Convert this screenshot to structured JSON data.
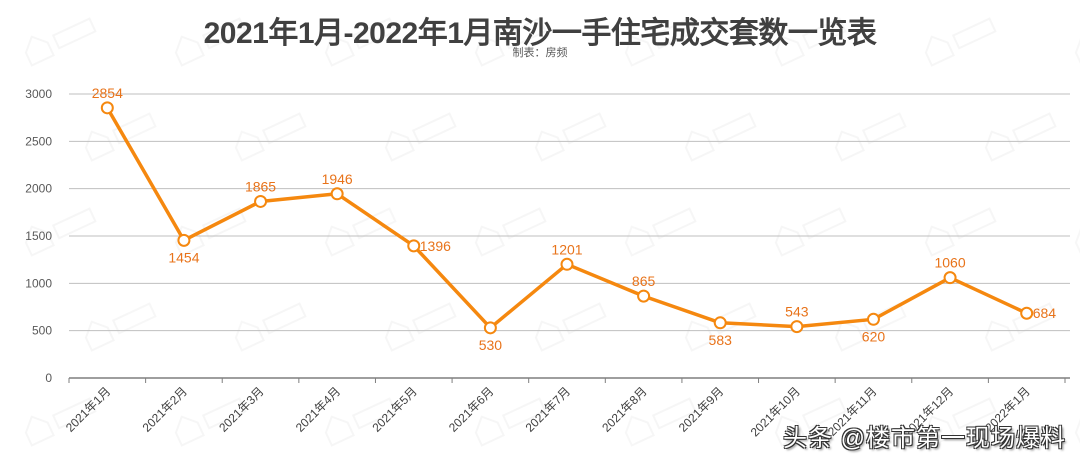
{
  "header": {
    "title": "2021年1月-2022年1月南沙一手住宅成交套数一览表",
    "subtitle": "制表：房频"
  },
  "footer_watermark": "头条 @楼市第一现场爆料",
  "colors": {
    "line": "#F5880F",
    "label": "#E8731A",
    "grid": "#BFBFBF",
    "axis": "#7F7F7F",
    "tick_text": "#595959"
  },
  "chart_data": {
    "type": "line",
    "title": "2021年1月-2022年1月南沙一手住宅成交套数一览表",
    "subtitle": "制表：房频",
    "xlabel": "",
    "ylabel": "",
    "ylim": [
      0,
      3000
    ],
    "yticks": [
      0,
      500,
      1000,
      1500,
      2000,
      2500,
      3000
    ],
    "grid": true,
    "legend": "none",
    "categories": [
      "2021年1月",
      "2021年2月",
      "2021年3月",
      "2021年4月",
      "2021年5月",
      "2021年6月",
      "2021年7月",
      "2021年8月",
      "2021年9月",
      "2021年10月",
      "2021年11月",
      "2021年12月",
      "2022年1月"
    ],
    "series": [
      {
        "name": "成交套数",
        "values": [
          2854,
          1454,
          1865,
          1946,
          1396,
          530,
          1201,
          865,
          583,
          543,
          620,
          1060,
          684
        ],
        "label_positions": [
          "above",
          "below",
          "above",
          "above",
          "right",
          "below",
          "above",
          "above",
          "below",
          "above",
          "below",
          "above",
          "right"
        ]
      }
    ]
  }
}
